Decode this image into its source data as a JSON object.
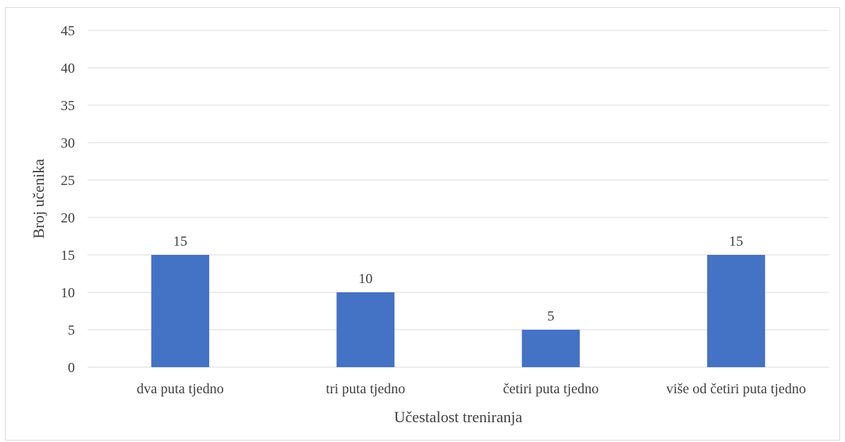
{
  "chart_data": {
    "type": "bar",
    "categories": [
      "dva puta tjedno",
      "tri puta tjedno",
      "četiri puta tjedno",
      "više od četiri puta tjedno"
    ],
    "values": [
      15,
      10,
      5,
      15
    ],
    "title": "",
    "xlabel": "Učestalost treniranja",
    "ylabel": "Broj učenika",
    "ylim": [
      0,
      45
    ],
    "yticks": [
      0,
      5,
      10,
      15,
      20,
      25,
      30,
      35,
      40,
      45
    ],
    "bar_color": "#4472c4",
    "grid": true,
    "legend": "none",
    "data_labels": true
  }
}
